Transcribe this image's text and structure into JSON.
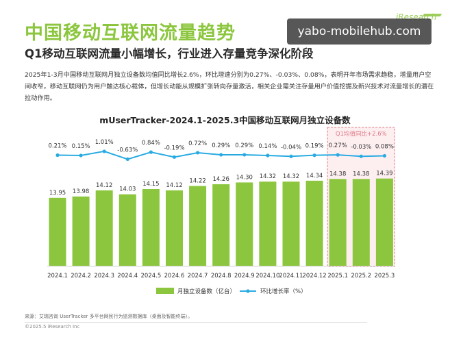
{
  "page": {
    "title": "中国移动互联网流量趋势",
    "subtitle": "Q1移动互联网流量小幅增长，行业进入存量竞争深化阶段",
    "intro": "2025年1-3月中国移动互联网月独立设备数均值同比增长2.6%，环比增速分别为0.27%、-0.03%、0.08%，表明开年市场需求趋稳，增量用户空间收窄，移动互联网仍为用户触达核心载体，但增长动能从规模扩张转向存量激活，相关企业需关注存量用户价值挖掘及新兴技术对流量增长的潜在拉动作用。",
    "source": "来源：艾瑞咨询 UserTracker 多平台网民行为监测数据库（桌面及智能终端）。",
    "copyright": "©2025.5 iResearch Inc",
    "watermark": "yabo-mobilehub.com",
    "brand": "iResearch"
  },
  "chart_data": {
    "title": "mUserTracker-2024.1-2025.3中国移动互联网月独立设备数",
    "type": "bar",
    "categories": [
      "2024.1",
      "2024.2",
      "2024.3",
      "2024.4",
      "2024.5",
      "2024.6",
      "2024.7",
      "2024.8",
      "2024.9",
      "2024.10",
      "2024.11",
      "2024.12",
      "2025.1",
      "2025.2",
      "2025.3"
    ],
    "series": [
      {
        "name": "月独立设备数（亿台）",
        "type": "bar",
        "color": "#8cc63e",
        "values": [
          13.95,
          13.98,
          14.12,
          14.03,
          14.15,
          14.12,
          14.22,
          14.26,
          14.3,
          14.32,
          14.32,
          14.34,
          14.38,
          14.38,
          14.39
        ],
        "labels": [
          "13.95",
          "13.98",
          "14.12",
          "14.03",
          "14.15",
          "14.12",
          "14.22",
          "14.26",
          "14.30",
          "14.32",
          "14.32",
          "14.34",
          "14.38",
          "14.38",
          "14.39"
        ]
      },
      {
        "name": "环比增长率（%）",
        "type": "line",
        "color": "#29abe2",
        "values": [
          0.21,
          0.15,
          1.01,
          -0.63,
          0.84,
          -0.19,
          0.72,
          0.29,
          0.29,
          0.14,
          -0.04,
          0.19,
          0.27,
          -0.03,
          0.08
        ],
        "labels": [
          "0.21%",
          "0.15%",
          "1.01%",
          "-0.63%",
          "0.84%",
          "-0.19%",
          "0.72%",
          "0.29%",
          "0.29%",
          "0.14%",
          "-0.04%",
          "0.19%",
          "0.27%",
          "-0.03%",
          "0.08%"
        ]
      }
    ],
    "annotation": "Q1均值同比+2.6%",
    "highlight_categories": [
      "2025.1",
      "2025.2",
      "2025.3"
    ],
    "legend_placement": "bottom",
    "grid": false
  }
}
